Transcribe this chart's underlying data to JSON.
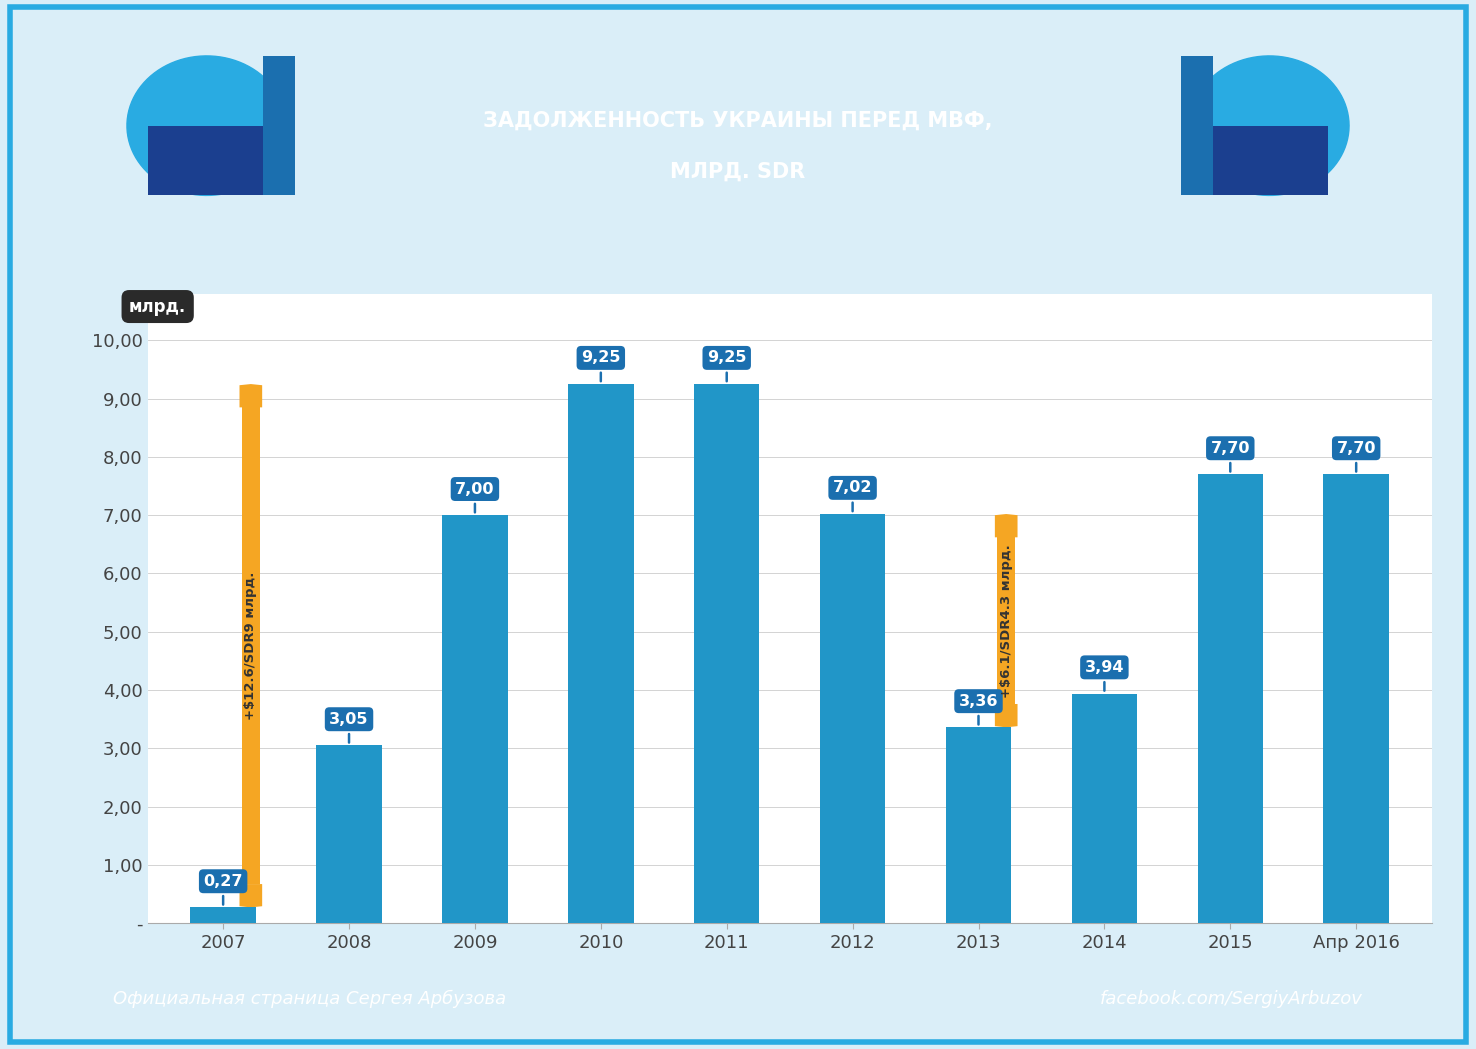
{
  "title_line1": "ЗАДОЛЖЕННОСТЬ УКРАИНЫ ПЕРЕД МВФ,",
  "title_line2": "МЛРД. SDR",
  "categories": [
    "2007",
    "2008",
    "2009",
    "2010",
    "2011",
    "2012",
    "2013",
    "2014",
    "2015",
    "Апр 2016"
  ],
  "values": [
    0.27,
    3.05,
    7.0,
    9.25,
    9.25,
    7.02,
    3.36,
    3.94,
    7.7,
    7.7
  ],
  "bar_color": "#2196C8",
  "bar_color_dark": "#1565A0",
  "background_color": "#FFFFFF",
  "chart_bg": "#F5F5F5",
  "outer_bg": "#DAEEF8",
  "ylabel_text": "млрд.",
  "ytick_labels": [
    "-",
    "1,00",
    "2,00",
    "3,00",
    "4,00",
    "5,00",
    "6,00",
    "7,00",
    "8,00",
    "9,00",
    "10,00"
  ],
  "arrow1_label": "+$12.6/SDR9 млрд.",
  "arrow2_label": "+$6.1/SDR4.3 млрд.",
  "footer_left": "Официальная страница Сергея Арбузова",
  "footer_right": "facebook.com/SergiyArbuzov",
  "footer_bg": "#29ABE2",
  "footer_text_color": "#FFFFFF",
  "border_color": "#29ABE2",
  "title_bg": "#1B6FAF",
  "title_text_color": "#FFFFFF",
  "ribbon_light": "#29ABE2",
  "ribbon_dark": "#1B3F8F",
  "arrow_color": "#F5A623",
  "label_bg": "#1B6FAF",
  "label_text": "#FFFFFF",
  "bar_labels": [
    "0,27",
    "3,05",
    "7,00",
    "9,25",
    "9,25",
    "7,02",
    "3,36",
    "3,94",
    "7,70",
    "7,70"
  ]
}
